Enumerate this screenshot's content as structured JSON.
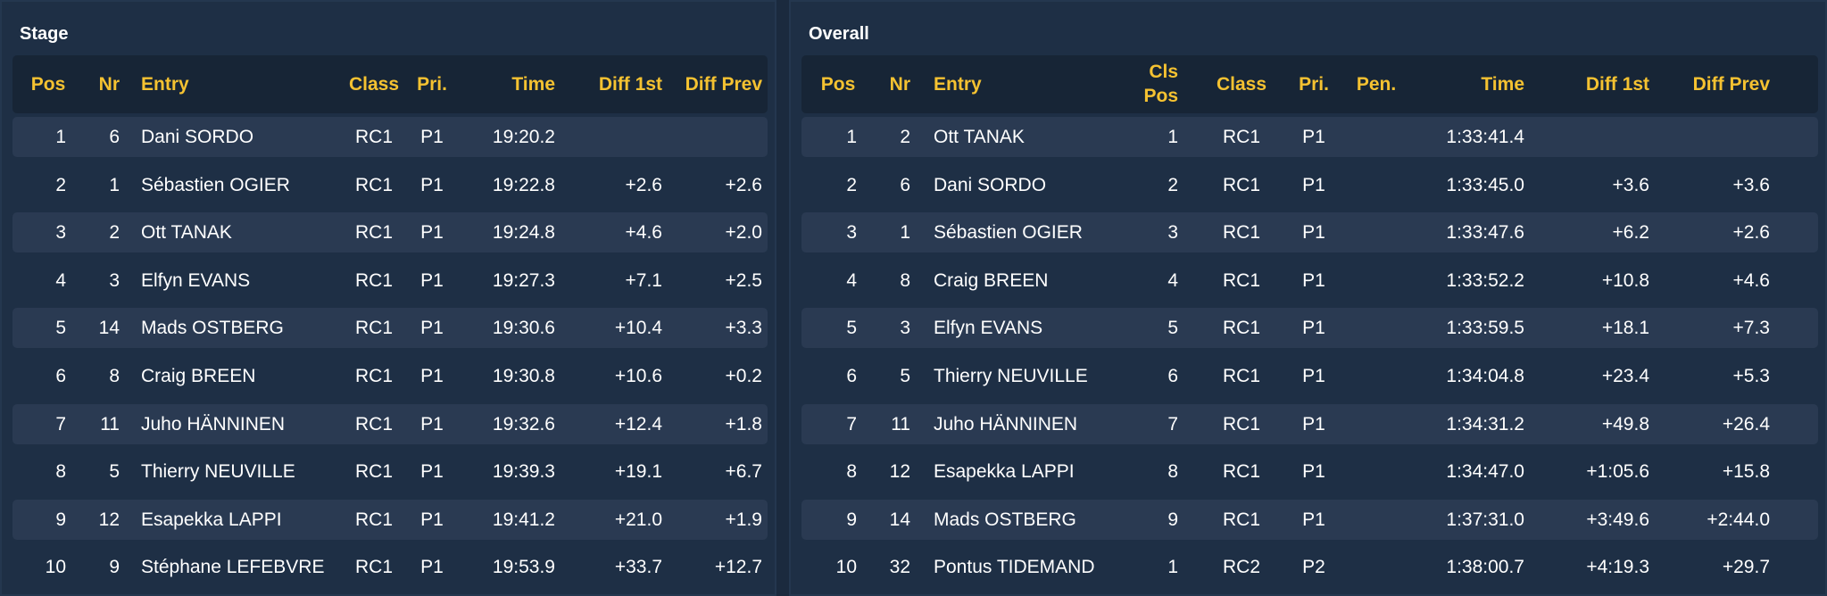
{
  "stage": {
    "title": "Stage",
    "headers": {
      "pos": "Pos",
      "nr": "Nr",
      "entry": "Entry",
      "class": "Class",
      "pri": "Pri.",
      "time": "Time",
      "diff1": "Diff 1st",
      "diffprev": "Diff Prev"
    },
    "rows": [
      {
        "pos": "1",
        "nr": "6",
        "entry": "Dani SORDO",
        "class": "RC1",
        "pri": "P1",
        "time": "19:20.2",
        "diff1": "",
        "diffprev": ""
      },
      {
        "pos": "2",
        "nr": "1",
        "entry": "Sébastien OGIER",
        "class": "RC1",
        "pri": "P1",
        "time": "19:22.8",
        "diff1": "+2.6",
        "diffprev": "+2.6"
      },
      {
        "pos": "3",
        "nr": "2",
        "entry": "Ott TANAK",
        "class": "RC1",
        "pri": "P1",
        "time": "19:24.8",
        "diff1": "+4.6",
        "diffprev": "+2.0"
      },
      {
        "pos": "4",
        "nr": "3",
        "entry": "Elfyn EVANS",
        "class": "RC1",
        "pri": "P1",
        "time": "19:27.3",
        "diff1": "+7.1",
        "diffprev": "+2.5"
      },
      {
        "pos": "5",
        "nr": "14",
        "entry": "Mads OSTBERG",
        "class": "RC1",
        "pri": "P1",
        "time": "19:30.6",
        "diff1": "+10.4",
        "diffprev": "+3.3"
      },
      {
        "pos": "6",
        "nr": "8",
        "entry": "Craig BREEN",
        "class": "RC1",
        "pri": "P1",
        "time": "19:30.8",
        "diff1": "+10.6",
        "diffprev": "+0.2"
      },
      {
        "pos": "7",
        "nr": "11",
        "entry": "Juho HÄNNINEN",
        "class": "RC1",
        "pri": "P1",
        "time": "19:32.6",
        "diff1": "+12.4",
        "diffprev": "+1.8"
      },
      {
        "pos": "8",
        "nr": "5",
        "entry": "Thierry NEUVILLE",
        "class": "RC1",
        "pri": "P1",
        "time": "19:39.3",
        "diff1": "+19.1",
        "diffprev": "+6.7"
      },
      {
        "pos": "9",
        "nr": "12",
        "entry": "Esapekka LAPPI",
        "class": "RC1",
        "pri": "P1",
        "time": "19:41.2",
        "diff1": "+21.0",
        "diffprev": "+1.9"
      },
      {
        "pos": "10",
        "nr": "9",
        "entry": "Stéphane LEFEBVRE",
        "class": "RC1",
        "pri": "P1",
        "time": "19:53.9",
        "diff1": "+33.7",
        "diffprev": "+12.7"
      }
    ]
  },
  "overall": {
    "title": "Overall",
    "headers": {
      "pos": "Pos",
      "nr": "Nr",
      "entry": "Entry",
      "clspos_line1": "Cls",
      "clspos_line2": "Pos",
      "class": "Class",
      "pri": "Pri.",
      "pen": "Pen.",
      "time": "Time",
      "diff1": "Diff 1st",
      "diffprev": "Diff Prev"
    },
    "rows": [
      {
        "pos": "1",
        "nr": "2",
        "entry": "Ott TANAK",
        "clspos": "1",
        "class": "RC1",
        "pri": "P1",
        "pen": "",
        "time": "1:33:41.4",
        "diff1": "",
        "diffprev": ""
      },
      {
        "pos": "2",
        "nr": "6",
        "entry": "Dani SORDO",
        "clspos": "2",
        "class": "RC1",
        "pri": "P1",
        "pen": "",
        "time": "1:33:45.0",
        "diff1": "+3.6",
        "diffprev": "+3.6"
      },
      {
        "pos": "3",
        "nr": "1",
        "entry": "Sébastien OGIER",
        "clspos": "3",
        "class": "RC1",
        "pri": "P1",
        "pen": "",
        "time": "1:33:47.6",
        "diff1": "+6.2",
        "diffprev": "+2.6"
      },
      {
        "pos": "4",
        "nr": "8",
        "entry": "Craig BREEN",
        "clspos": "4",
        "class": "RC1",
        "pri": "P1",
        "pen": "",
        "time": "1:33:52.2",
        "diff1": "+10.8",
        "diffprev": "+4.6"
      },
      {
        "pos": "5",
        "nr": "3",
        "entry": "Elfyn EVANS",
        "clspos": "5",
        "class": "RC1",
        "pri": "P1",
        "pen": "",
        "time": "1:33:59.5",
        "diff1": "+18.1",
        "diffprev": "+7.3"
      },
      {
        "pos": "6",
        "nr": "5",
        "entry": "Thierry NEUVILLE",
        "clspos": "6",
        "class": "RC1",
        "pri": "P1",
        "pen": "",
        "time": "1:34:04.8",
        "diff1": "+23.4",
        "diffprev": "+5.3"
      },
      {
        "pos": "7",
        "nr": "11",
        "entry": "Juho HÄNNINEN",
        "clspos": "7",
        "class": "RC1",
        "pri": "P1",
        "pen": "",
        "time": "1:34:31.2",
        "diff1": "+49.8",
        "diffprev": "+26.4"
      },
      {
        "pos": "8",
        "nr": "12",
        "entry": "Esapekka LAPPI",
        "clspos": "8",
        "class": "RC1",
        "pri": "P1",
        "pen": "",
        "time": "1:34:47.0",
        "diff1": "+1:05.6",
        "diffprev": "+15.8"
      },
      {
        "pos": "9",
        "nr": "14",
        "entry": "Mads OSTBERG",
        "clspos": "9",
        "class": "RC1",
        "pri": "P1",
        "pen": "",
        "time": "1:37:31.0",
        "diff1": "+3:49.6",
        "diffprev": "+2:44.0"
      },
      {
        "pos": "10",
        "nr": "32",
        "entry": "Pontus TIDEMAND",
        "clspos": "1",
        "class": "RC2",
        "pri": "P2",
        "pen": "",
        "time": "1:38:00.7",
        "diff1": "+4:19.3",
        "diffprev": "+29.7"
      }
    ]
  }
}
